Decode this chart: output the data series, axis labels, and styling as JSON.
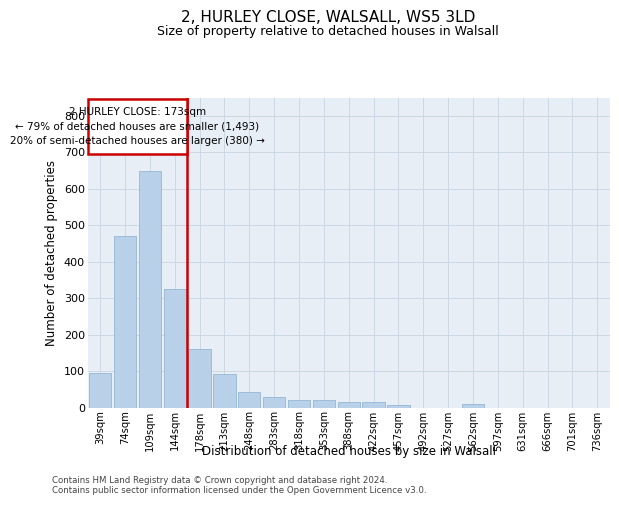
{
  "title1": "2, HURLEY CLOSE, WALSALL, WS5 3LD",
  "title2": "Size of property relative to detached houses in Walsall",
  "xlabel": "Distribution of detached houses by size in Walsall",
  "ylabel": "Number of detached properties",
  "categories": [
    "39sqm",
    "74sqm",
    "109sqm",
    "144sqm",
    "178sqm",
    "213sqm",
    "248sqm",
    "283sqm",
    "318sqm",
    "353sqm",
    "388sqm",
    "422sqm",
    "457sqm",
    "492sqm",
    "527sqm",
    "562sqm",
    "597sqm",
    "631sqm",
    "666sqm",
    "701sqm",
    "736sqm"
  ],
  "values": [
    95,
    470,
    648,
    325,
    160,
    92,
    43,
    28,
    20,
    20,
    16,
    14,
    8,
    0,
    0,
    10,
    0,
    0,
    0,
    0,
    0
  ],
  "bar_color": "#b8d0e8",
  "bar_edge_color": "#8ab0d0",
  "vline_color": "#cc0000",
  "annotation_text": "2 HURLEY CLOSE: 173sqm\n← 79% of detached houses are smaller (1,493)\n20% of semi-detached houses are larger (380) →",
  "annotation_box_color": "#cc0000",
  "ylim": [
    0,
    850
  ],
  "yticks": [
    0,
    100,
    200,
    300,
    400,
    500,
    600,
    700,
    800
  ],
  "footnote": "Contains HM Land Registry data © Crown copyright and database right 2024.\nContains public sector information licensed under the Open Government Licence v3.0.",
  "plot_bg_color": "#e8eef5",
  "fig_bg_color": "#ffffff",
  "grid_color": "#c8d4e0"
}
